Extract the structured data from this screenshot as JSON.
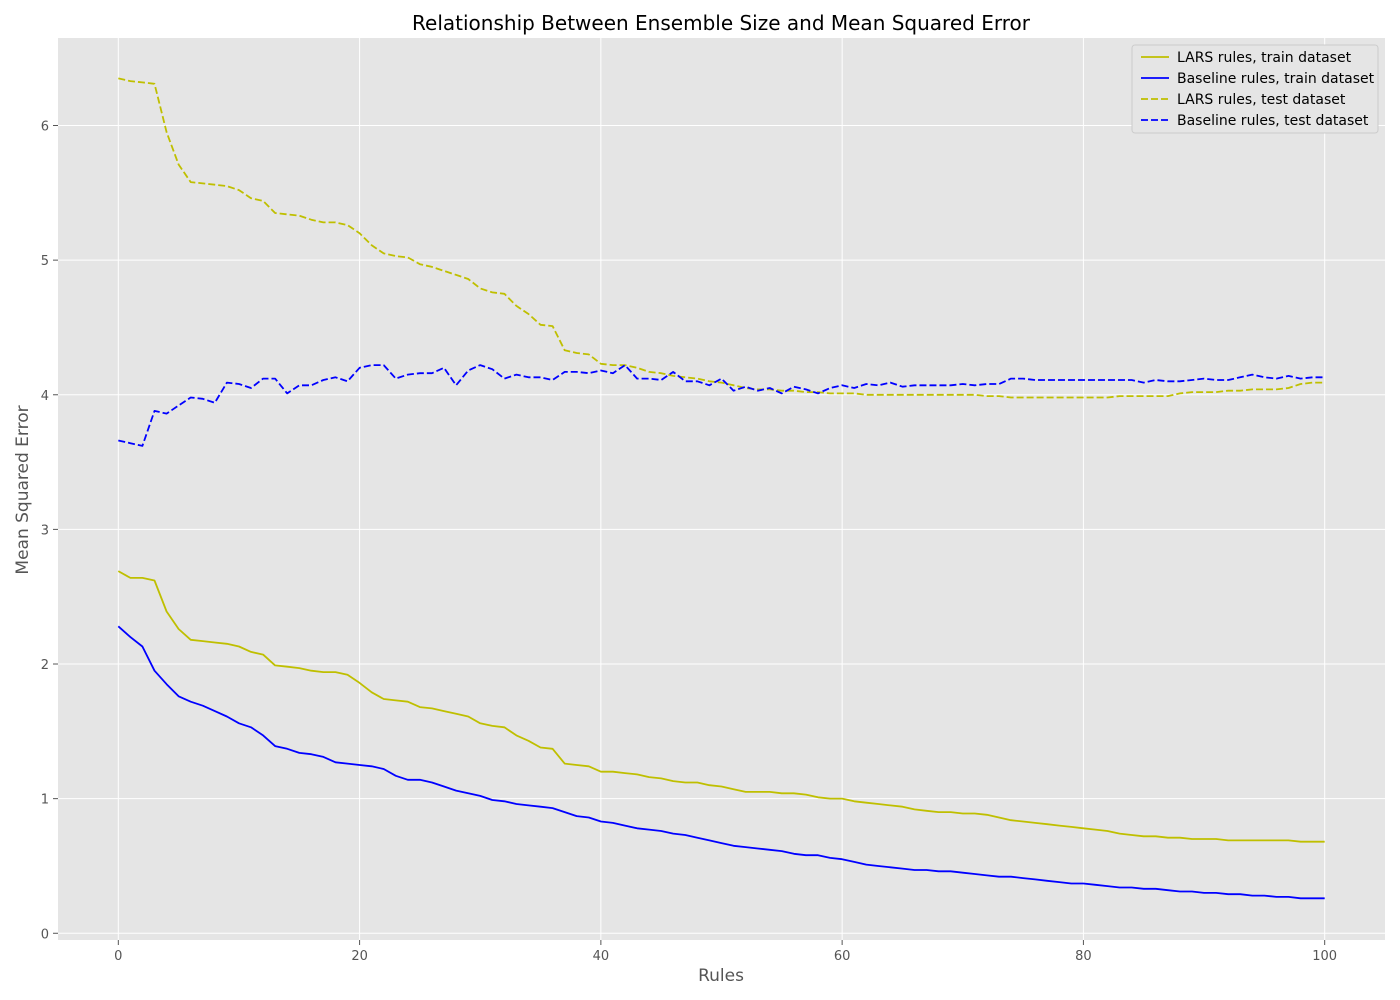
{
  "chart_data": {
    "type": "line",
    "title": "Relationship Between Ensemble Size and Mean Squared Error",
    "xlabel": "Rules",
    "ylabel": "Mean Squared Error",
    "xlim": [
      -5,
      105
    ],
    "ylim": [
      -0.05,
      6.65
    ],
    "xticks": [
      0,
      20,
      40,
      60,
      80,
      100
    ],
    "yticks": [
      0,
      1,
      2,
      3,
      4,
      5,
      6
    ],
    "grid": true,
    "legend_position": "top-right",
    "background": "#e5e5e5",
    "x": [
      0,
      1,
      2,
      3,
      4,
      5,
      6,
      7,
      8,
      9,
      10,
      11,
      12,
      13,
      14,
      15,
      16,
      17,
      18,
      19,
      20,
      21,
      22,
      23,
      24,
      25,
      26,
      27,
      28,
      29,
      30,
      31,
      32,
      33,
      34,
      35,
      36,
      37,
      38,
      39,
      40,
      41,
      42,
      43,
      44,
      45,
      46,
      47,
      48,
      49,
      50,
      51,
      52,
      53,
      54,
      55,
      56,
      57,
      58,
      59,
      60,
      61,
      62,
      63,
      64,
      65,
      66,
      67,
      68,
      69,
      70,
      71,
      72,
      73,
      74,
      75,
      76,
      77,
      78,
      79,
      80,
      81,
      82,
      83,
      84,
      85,
      86,
      87,
      88,
      89,
      90,
      91,
      92,
      93,
      94,
      95,
      96,
      97,
      98,
      99,
      100
    ],
    "series": [
      {
        "name": "LARS rules, train dataset",
        "color": "#bfbf00",
        "dash": "solid",
        "values": [
          2.69,
          2.64,
          2.64,
          2.62,
          2.39,
          2.26,
          2.18,
          2.17,
          2.16,
          2.15,
          2.13,
          2.09,
          2.07,
          1.99,
          1.98,
          1.97,
          1.95,
          1.94,
          1.94,
          1.92,
          1.86,
          1.79,
          1.74,
          1.73,
          1.72,
          1.68,
          1.67,
          1.65,
          1.63,
          1.61,
          1.56,
          1.54,
          1.53,
          1.47,
          1.43,
          1.38,
          1.37,
          1.26,
          1.25,
          1.24,
          1.2,
          1.2,
          1.19,
          1.18,
          1.16,
          1.15,
          1.13,
          1.12,
          1.12,
          1.1,
          1.09,
          1.07,
          1.05,
          1.05,
          1.05,
          1.04,
          1.04,
          1.03,
          1.01,
          1.0,
          1.0,
          0.98,
          0.97,
          0.96,
          0.95,
          0.94,
          0.92,
          0.91,
          0.9,
          0.9,
          0.89,
          0.89,
          0.88,
          0.86,
          0.84,
          0.83,
          0.82,
          0.81,
          0.8,
          0.79,
          0.78,
          0.77,
          0.76,
          0.74,
          0.73,
          0.72,
          0.72,
          0.71,
          0.71,
          0.7,
          0.7,
          0.7,
          0.69,
          0.69,
          0.69,
          0.69,
          0.69,
          0.69,
          0.68,
          0.68,
          0.68
        ]
      },
      {
        "name": "Baseline rules, train dataset",
        "color": "#0000ff",
        "dash": "solid",
        "values": [
          2.28,
          2.2,
          2.13,
          1.95,
          1.85,
          1.76,
          1.72,
          1.69,
          1.65,
          1.61,
          1.56,
          1.53,
          1.47,
          1.39,
          1.37,
          1.34,
          1.33,
          1.31,
          1.27,
          1.26,
          1.25,
          1.24,
          1.22,
          1.17,
          1.14,
          1.14,
          1.12,
          1.09,
          1.06,
          1.04,
          1.02,
          0.99,
          0.98,
          0.96,
          0.95,
          0.94,
          0.93,
          0.9,
          0.87,
          0.86,
          0.83,
          0.82,
          0.8,
          0.78,
          0.77,
          0.76,
          0.74,
          0.73,
          0.71,
          0.69,
          0.67,
          0.65,
          0.64,
          0.63,
          0.62,
          0.61,
          0.59,
          0.58,
          0.58,
          0.56,
          0.55,
          0.53,
          0.51,
          0.5,
          0.49,
          0.48,
          0.47,
          0.47,
          0.46,
          0.46,
          0.45,
          0.44,
          0.43,
          0.42,
          0.42,
          0.41,
          0.4,
          0.39,
          0.38,
          0.37,
          0.37,
          0.36,
          0.35,
          0.34,
          0.34,
          0.33,
          0.33,
          0.32,
          0.31,
          0.31,
          0.3,
          0.3,
          0.29,
          0.29,
          0.28,
          0.28,
          0.27,
          0.27,
          0.26,
          0.26,
          0.26
        ]
      },
      {
        "name": "LARS rules, test dataset",
        "color": "#bfbf00",
        "dash": "dashed",
        "values": [
          6.35,
          6.33,
          6.32,
          6.31,
          5.95,
          5.71,
          5.58,
          5.57,
          5.56,
          5.55,
          5.52,
          5.46,
          5.44,
          5.35,
          5.34,
          5.33,
          5.3,
          5.28,
          5.28,
          5.26,
          5.2,
          5.11,
          5.05,
          5.03,
          5.02,
          4.97,
          4.95,
          4.92,
          4.89,
          4.86,
          4.79,
          4.76,
          4.75,
          4.66,
          4.6,
          4.52,
          4.51,
          4.33,
          4.31,
          4.3,
          4.23,
          4.22,
          4.22,
          4.2,
          4.17,
          4.16,
          4.14,
          4.13,
          4.12,
          4.1,
          4.09,
          4.07,
          4.05,
          4.04,
          4.04,
          4.03,
          4.03,
          4.02,
          4.02,
          4.01,
          4.01,
          4.01,
          4.0,
          4.0,
          4.0,
          4.0,
          4.0,
          4.0,
          4.0,
          4.0,
          4.0,
          4.0,
          3.99,
          3.99,
          3.98,
          3.98,
          3.98,
          3.98,
          3.98,
          3.98,
          3.98,
          3.98,
          3.98,
          3.99,
          3.99,
          3.99,
          3.99,
          3.99,
          4.01,
          4.02,
          4.02,
          4.02,
          4.03,
          4.03,
          4.04,
          4.04,
          4.04,
          4.05,
          4.08,
          4.09,
          4.09
        ]
      },
      {
        "name": "Baseline rules, test dataset",
        "color": "#0000ff",
        "dash": "dashed",
        "values": [
          3.66,
          3.64,
          3.62,
          3.88,
          3.86,
          3.92,
          3.98,
          3.97,
          3.94,
          4.09,
          4.08,
          4.05,
          4.12,
          4.12,
          4.01,
          4.07,
          4.07,
          4.11,
          4.13,
          4.1,
          4.2,
          4.22,
          4.22,
          4.12,
          4.15,
          4.16,
          4.16,
          4.2,
          4.07,
          4.18,
          4.22,
          4.19,
          4.12,
          4.15,
          4.13,
          4.13,
          4.11,
          4.17,
          4.17,
          4.16,
          4.18,
          4.16,
          4.22,
          4.12,
          4.12,
          4.11,
          4.17,
          4.1,
          4.1,
          4.07,
          4.12,
          4.03,
          4.06,
          4.03,
          4.05,
          4.01,
          4.06,
          4.04,
          4.01,
          4.05,
          4.07,
          4.05,
          4.08,
          4.07,
          4.09,
          4.06,
          4.07,
          4.07,
          4.07,
          4.07,
          4.08,
          4.07,
          4.08,
          4.08,
          4.12,
          4.12,
          4.11,
          4.11,
          4.11,
          4.11,
          4.11,
          4.11,
          4.11,
          4.11,
          4.11,
          4.09,
          4.11,
          4.1,
          4.1,
          4.11,
          4.12,
          4.11,
          4.11,
          4.13,
          4.15,
          4.13,
          4.12,
          4.14,
          4.12,
          4.13,
          4.13
        ]
      }
    ]
  }
}
